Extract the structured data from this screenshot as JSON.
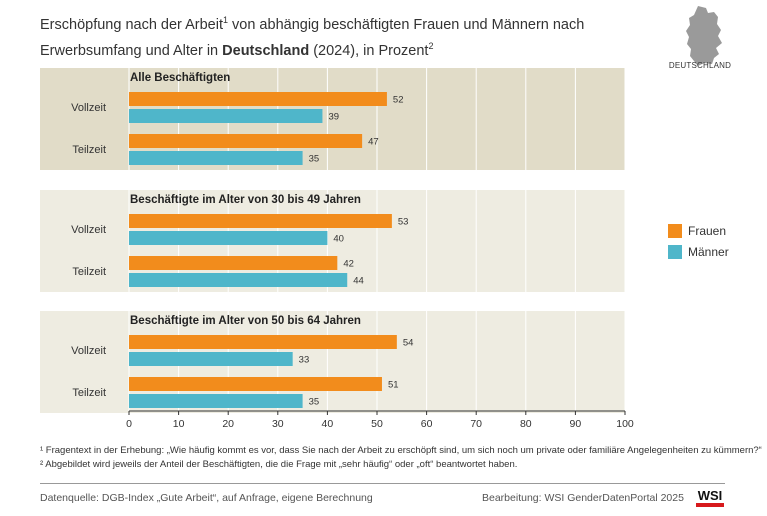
{
  "title": {
    "part1": "Erschöpfung nach der Arbeit",
    "sup1": "1",
    "part2": " von abhängig beschäftigten Frauen und Männern nach Erwerbsumfang und Alter in ",
    "bold": "Deutschland",
    "part3": " (2024), in Prozent",
    "sup2": "2"
  },
  "map_label": "DEUTSCHLAND",
  "colors": {
    "frauen": "#f28c1c",
    "maenner": "#4fb6ca",
    "panel_dark": "#e1dcc8",
    "panel_light": "#eeece1"
  },
  "chart_data": {
    "type": "bar",
    "orientation": "horizontal",
    "xlim": [
      0,
      100
    ],
    "xticks": [
      0,
      10,
      20,
      30,
      40,
      50,
      60,
      70,
      80,
      90,
      100
    ],
    "legend": [
      "Frauen",
      "Männer"
    ],
    "legend_position": "right",
    "groups": [
      {
        "title": "Alle Beschäftigten",
        "rows": [
          {
            "label": "Vollzeit",
            "frauen": 52,
            "maenner": 39
          },
          {
            "label": "Teilzeit",
            "frauen": 47,
            "maenner": 35
          }
        ]
      },
      {
        "title": "Beschäftigte im Alter von 30 bis 49 Jahren",
        "rows": [
          {
            "label": "Vollzeit",
            "frauen": 53,
            "maenner": 40
          },
          {
            "label": "Teilzeit",
            "frauen": 42,
            "maenner": 44
          }
        ]
      },
      {
        "title": "Beschäftigte im Alter von 50 bis 64 Jahren",
        "rows": [
          {
            "label": "Vollzeit",
            "frauen": 54,
            "maenner": 33
          },
          {
            "label": "Teilzeit",
            "frauen": 51,
            "maenner": 35
          }
        ]
      }
    ]
  },
  "notes": {
    "n1": "¹ Fragentext in der Erhebung: „Wie häufig kommt es vor, dass Sie nach der Arbeit zu erschöpft sind, um sich noch um private oder familiäre Angelegenheiten zu kümmern?“",
    "n2": "² Abgebildet wird jeweils der Anteil der Beschäftigten, die die Frage mit „sehr häufig“ oder „oft“ beantwortet haben."
  },
  "source": "Datenquelle: DGB-Index „Gute Arbeit“, auf Anfrage, eigene Berechnung",
  "credit": "Bearbeitung: WSI GenderDatenPortal 2025",
  "logo_text": "WSI"
}
